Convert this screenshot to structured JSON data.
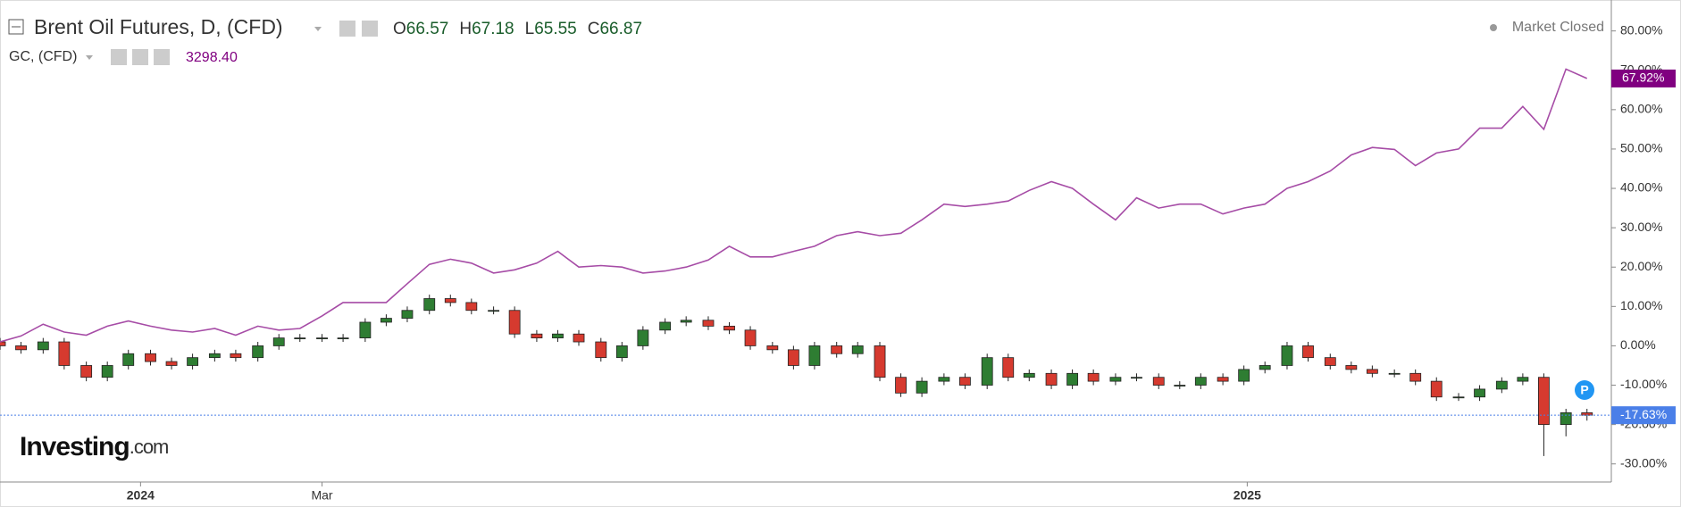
{
  "chart_data": {
    "type": "candlestick",
    "status": "Market Closed",
    "brand": "Investing",
    "brand_suffix": ".com",
    "x": [
      2023.873,
      2023.892,
      2023.912,
      2023.931,
      2023.951,
      2023.97,
      2023.989,
      2024.009,
      2024.028,
      2024.047,
      2024.067,
      2024.086,
      2024.106,
      2024.125,
      2024.144,
      2024.164,
      2024.183,
      2024.203,
      2024.222,
      2024.241,
      2024.261,
      2024.28,
      2024.299,
      2024.319,
      2024.338,
      2024.358,
      2024.377,
      2024.396,
      2024.416,
      2024.435,
      2024.454,
      2024.474,
      2024.493,
      2024.513,
      2024.532,
      2024.551,
      2024.571,
      2024.59,
      2024.609,
      2024.629,
      2024.648,
      2024.668,
      2024.687,
      2024.706,
      2024.726,
      2024.745,
      2024.765,
      2024.784,
      2024.803,
      2024.823,
      2024.842,
      2024.861,
      2024.881,
      2024.9,
      2024.92,
      2024.939,
      2024.958,
      2024.978,
      2024.997,
      2025.016,
      2025.036,
      2025.055,
      2025.075,
      2025.094,
      2025.113,
      2025.133,
      2025.152,
      2025.171,
      2025.191,
      2025.21,
      2025.23,
      2025.249,
      2025.268,
      2025.288,
      2025.307
    ],
    "xlim": [
      2023.873,
      2025.329
    ],
    "xticks": [
      2024,
      {
        "value": 2024.164,
        "label": "Mar"
      },
      2025
    ],
    "ylim": [
      -34.6,
      86.5
    ],
    "yticks": [
      {
        "value": -30,
        "label": "-30.00%"
      },
      {
        "value": -20,
        "label": "-20.00%"
      },
      {
        "value": -10,
        "label": "-10.00%"
      },
      {
        "value": 0,
        "label": "0.00%"
      },
      {
        "value": 10,
        "label": "10.00%"
      },
      {
        "value": 20,
        "label": "20.00%"
      },
      {
        "value": 30,
        "label": "30.00%"
      },
      {
        "value": 40,
        "label": "40.00%"
      },
      {
        "value": 50,
        "label": "50.00%"
      },
      {
        "value": 60,
        "label": "60.00%"
      },
      {
        "value": 70,
        "label": "70.00%"
      },
      {
        "value": 80,
        "label": "80.00%"
      }
    ],
    "grid": false,
    "series": [
      {
        "name": "Brent Oil Futures, D, (CFD)",
        "type": "candlestick",
        "up_color": "#2e7d32",
        "down_color": "#d63a2f",
        "color": "#4a7fe8",
        "last_label": "-17.63%",
        "quote": [
          {
            "label": "O",
            "value": "66.57"
          },
          {
            "label": "H",
            "value": "67.18"
          },
          {
            "label": "L",
            "value": "65.55"
          },
          {
            "label": "C",
            "value": "66.87"
          }
        ],
        "open": [
          1,
          0,
          -1,
          1,
          -5,
          -8,
          -5,
          -2,
          -4,
          -5,
          -3,
          -2,
          -3,
          0,
          2,
          2,
          2,
          2,
          6,
          7,
          9,
          12,
          11,
          9,
          9,
          3,
          2,
          3,
          1,
          -3,
          0,
          4,
          6,
          6.5,
          5,
          4,
          0,
          -1,
          -5,
          0,
          -2,
          0,
          -8,
          -12,
          -9,
          -8,
          -10,
          -3,
          -8,
          -7,
          -10,
          -7,
          -9,
          -8,
          -8,
          -10,
          -10,
          -8,
          -9,
          -6,
          -5,
          0,
          -3,
          -5,
          -6,
          -7,
          -7,
          -9,
          -13,
          -13,
          -11,
          -9,
          -8,
          -20,
          -17
        ],
        "high": [
          2,
          1,
          2,
          2,
          -4,
          -4,
          -1,
          -1,
          -3,
          -2,
          -1,
          -1,
          1,
          3,
          3,
          3,
          3,
          7,
          8,
          10,
          13,
          13,
          12,
          10,
          10,
          4,
          4,
          4,
          2,
          1,
          5,
          7,
          7.5,
          7.5,
          6,
          5,
          1,
          0,
          1,
          1,
          1,
          1,
          -7,
          -8,
          -7,
          -7,
          -2,
          -2,
          -6,
          -6,
          -6,
          -6,
          -7,
          -7,
          -7,
          -9,
          -7,
          -7,
          -5,
          -4,
          1,
          1,
          -2,
          -4,
          -5,
          -6,
          -6,
          -8,
          -12,
          -10,
          -8,
          -7,
          -7,
          -16,
          -16
        ],
        "low": [
          -1,
          -2,
          -2,
          -6,
          -9,
          -9,
          -6,
          -5,
          -6,
          -6,
          -4,
          -4,
          -4,
          -1,
          1,
          1,
          1,
          1,
          5,
          6,
          8,
          10,
          8,
          8,
          2,
          1,
          1,
          0,
          -4,
          -4,
          -1,
          3,
          5,
          4,
          3,
          -1,
          -2,
          -6,
          -6,
          -3,
          -3,
          -9,
          -13,
          -13,
          -10,
          -11,
          -11,
          -9,
          -9,
          -11,
          -11,
          -10,
          -10,
          -9,
          -11,
          -11,
          -11,
          -10,
          -10,
          -7,
          -6,
          -4,
          -6,
          -7,
          -8,
          -8,
          -10,
          -14,
          -14,
          -14,
          -12,
          -10,
          -28,
          -23,
          -19
        ],
        "close": [
          0,
          -1,
          1,
          -5,
          -8,
          -5,
          -2,
          -4,
          -5,
          -3,
          -2,
          -3,
          0,
          2,
          2,
          2,
          2,
          6,
          7,
          9,
          12,
          11,
          9,
          9,
          3,
          2,
          3,
          1,
          -3,
          0,
          4,
          6,
          6.5,
          5,
          4,
          0,
          -1,
          -5,
          0,
          -2,
          0,
          -8,
          -12,
          -9,
          -8,
          -10,
          -3,
          -8,
          -7,
          -10,
          -7,
          -9,
          -8,
          -8,
          -10,
          -10,
          -8,
          -9,
          -6,
          -5,
          0,
          -3,
          -5,
          -6,
          -7,
          -7,
          -9,
          -13,
          -13,
          -11,
          -9,
          -8,
          -20,
          -17,
          -17.63
        ]
      },
      {
        "name": "GC, (CFD)",
        "type": "line",
        "color": "#a64ca6",
        "label_color": "#800080",
        "last_label": "67.92%",
        "quote_value": "3298.40",
        "values": [
          1,
          2.5,
          5.5,
          3.5,
          2.7,
          5,
          6.3,
          5,
          4,
          3.5,
          4.4,
          2.7,
          5,
          4,
          4.4,
          7.6,
          11,
          11,
          11,
          15.8,
          20.7,
          22,
          21,
          18.5,
          19.3,
          21,
          24,
          20,
          20.4,
          20,
          18.5,
          19,
          20,
          21.8,
          25.3,
          22.6,
          22.6,
          24,
          25.3,
          28,
          29,
          28,
          28.6,
          32,
          36,
          35.4,
          36,
          36.8,
          39.5,
          41.7,
          40,
          36,
          32,
          37.6,
          35,
          36,
          36,
          33.5,
          35,
          36,
          40,
          41.7,
          44.4,
          48.5,
          50.4,
          49.9,
          45.8,
          49,
          50,
          55.3,
          55.3,
          60.8,
          55,
          70.3,
          67.92
        ]
      }
    ]
  }
}
